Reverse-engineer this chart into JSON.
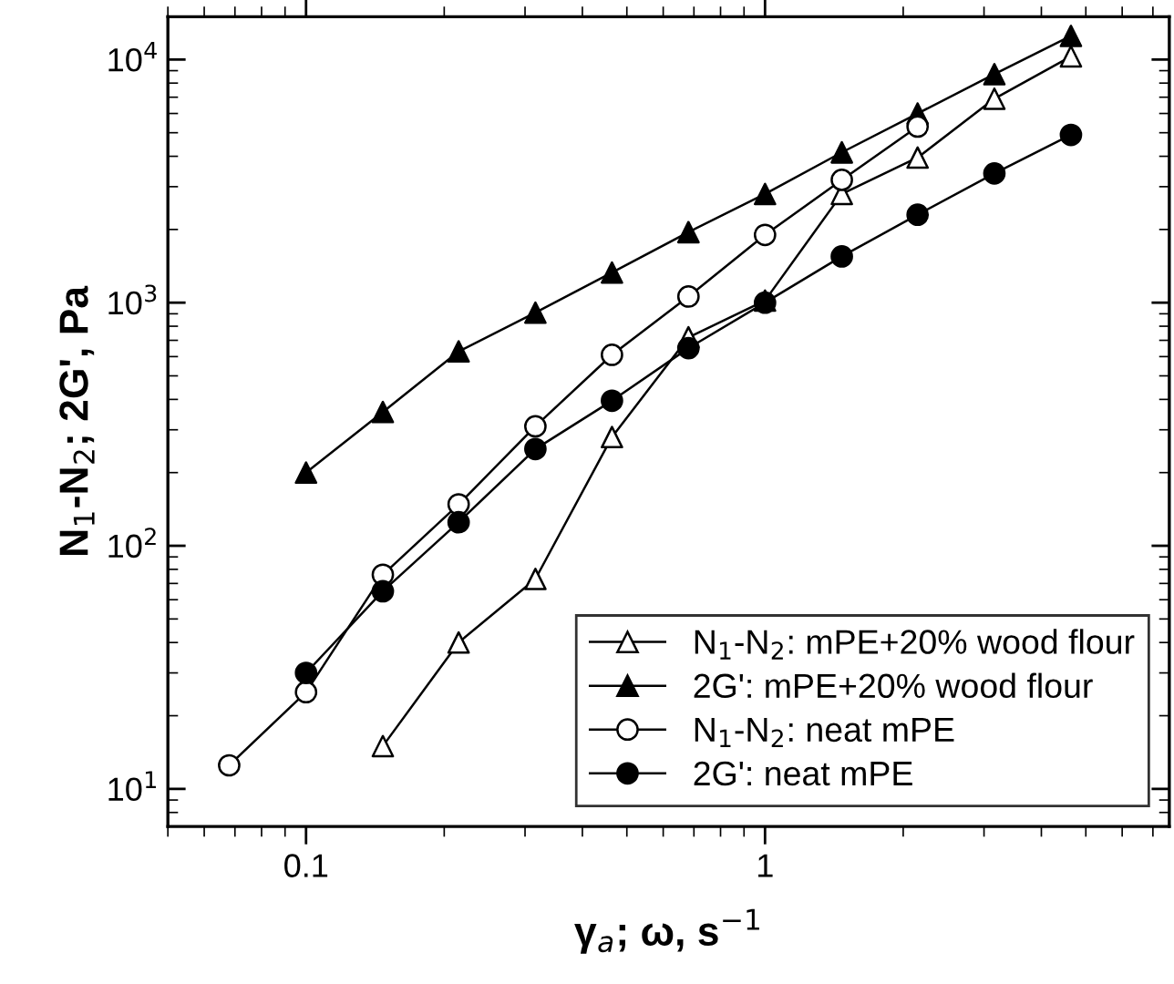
{
  "chart_data": {
    "type": "line",
    "xlabel": "γ$_{a}$; ω, s$^{−1}$",
    "ylabel": "N$_{1}$-N$_{2}$; 2G', Pa",
    "log": "xy",
    "grid": false,
    "legend": "bottom right",
    "line_style": "solid",
    "xlim": [
      0.05,
      7.6
    ],
    "xticks": [
      0.1,
      1
    ],
    "ylim": [
      7,
      15000
    ],
    "yticks": [
      {
        "value": 10,
        "label": "10$^{1}$"
      },
      {
        "value": 100,
        "label": "10$^{2}$"
      },
      {
        "value": 1000,
        "label": "10$^{3}$"
      },
      {
        "value": 10000,
        "label": "10$^{4}$"
      }
    ],
    "series": [
      {
        "name": "N$_{1}$-N$_{2}$: mPE+20% wood flour",
        "color": "#000000",
        "marker": "triangle",
        "colors": [
          "#ffffff",
          "#ffffff",
          "#ffffff",
          "#ffffff",
          "#ffffff",
          "#ffffff",
          "#ffffff",
          "#ffffff",
          "#ffffff",
          "#ffffff"
        ],
        "x": [
          0.147,
          0.215,
          0.316,
          0.464,
          0.681,
          1,
          1.47,
          2.15,
          3.16,
          4.64
        ],
        "values": [
          15,
          40,
          73,
          280,
          720,
          1020,
          2800,
          3950,
          6900,
          10300
        ]
      },
      {
        "name": "2G': mPE+20% wood flour",
        "color": "#000000",
        "marker": "triangle",
        "x": [
          0.1,
          0.147,
          0.215,
          0.316,
          0.464,
          0.681,
          1,
          1.47,
          2.15,
          3.16,
          4.64
        ],
        "values": [
          200,
          355,
          630,
          910,
          1330,
          1950,
          2800,
          4150,
          6000,
          8700,
          12500
        ]
      },
      {
        "name": "N$_{1}$-N$_{2}$: neat mPE",
        "color": "#000000",
        "marker": "circle",
        "colors": [
          "#ffffff",
          "#ffffff",
          "#ffffff",
          "#ffffff",
          "#ffffff",
          "#ffffff",
          "#ffffff",
          "#ffffff",
          "#ffffff",
          "#ffffff"
        ],
        "x": [
          0.068,
          0.1,
          0.147,
          0.215,
          0.316,
          0.464,
          0.681,
          1,
          1.47,
          2.15
        ],
        "values": [
          12.5,
          25,
          76,
          148,
          310,
          610,
          1060,
          1900,
          3200,
          5300
        ]
      },
      {
        "name": "2G': neat mPE",
        "color": "#000000",
        "marker": "circle",
        "x": [
          0.1,
          0.147,
          0.215,
          0.316,
          0.464,
          0.681,
          1,
          1.47,
          2.15,
          3.16,
          4.64
        ],
        "values": [
          30,
          65,
          125,
          250,
          395,
          650,
          1000,
          1550,
          2300,
          3400,
          4900
        ]
      }
    ]
  }
}
